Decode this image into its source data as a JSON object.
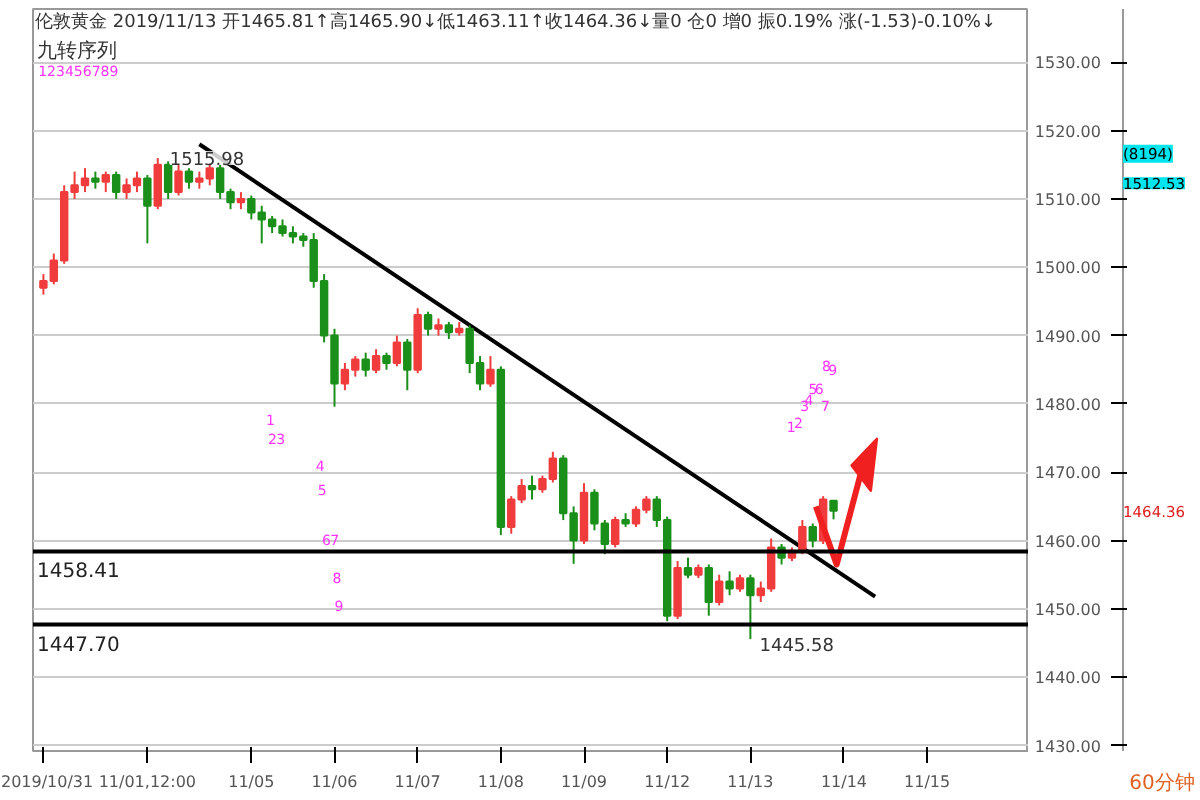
{
  "chart_data": {
    "type": "candlestick",
    "title": "伦敦黄金 2019/11/13 开1465.81↑高1465.90↓低1463.11↑收1464.36↓量0 仓0 增0 振0.19% 涨(-1.53)-0.10%↓",
    "subtitle": "九转序列",
    "categories": [
      "2019/10/31",
      null,
      null,
      null,
      null,
      null,
      null,
      null,
      null,
      null,
      "11/01,12:00",
      null,
      null,
      null,
      null,
      null,
      null,
      null,
      null,
      null,
      "11/05",
      null,
      null,
      null,
      null,
      null,
      null,
      null,
      "11/06",
      null,
      null,
      null,
      null,
      null,
      null,
      null,
      "11/07",
      null,
      null,
      null,
      null,
      null,
      null,
      null,
      "11/08",
      null,
      null,
      null,
      null,
      null,
      null,
      null,
      "11/09",
      null,
      null,
      null,
      null,
      null,
      null,
      null,
      "11/12",
      null,
      null,
      null,
      null,
      null,
      null,
      null,
      "11/13",
      null,
      null,
      null,
      null,
      null,
      null,
      null,
      null,
      "11/14",
      null,
      null,
      null,
      null,
      null,
      null,
      null,
      "11/15",
      null,
      null,
      null,
      null,
      null,
      null,
      null,
      null,
      null
    ],
    "ohlc": [
      [
        1497,
        1499,
        1496,
        1498
      ],
      [
        1498,
        1502,
        1497.5,
        1501
      ],
      [
        1501,
        1512,
        1500.5,
        1511
      ],
      [
        1511,
        1514,
        1510,
        1512
      ],
      [
        1512,
        1514.5,
        1511,
        1513
      ],
      [
        1513,
        1514,
        1511.5,
        1512.5
      ],
      [
        1512.5,
        1514,
        1511,
        1513.5
      ],
      [
        1513.5,
        1514,
        1510,
        1511
      ],
      [
        1511,
        1513,
        1510,
        1512
      ],
      [
        1512,
        1514,
        1511,
        1513
      ],
      [
        1513,
        1513.5,
        1503.5,
        1509
      ],
      [
        1509,
        1515.98,
        1508.5,
        1515
      ],
      [
        1515,
        1515.5,
        1510,
        1511
      ],
      [
        1511,
        1515,
        1510.5,
        1514
      ],
      [
        1514,
        1514.5,
        1511.5,
        1512.5
      ],
      [
        1512.5,
        1514,
        1511.5,
        1513
      ],
      [
        1513,
        1515,
        1512,
        1514.5
      ],
      [
        1514.5,
        1515,
        1510,
        1511
      ],
      [
        1511,
        1511.5,
        1508.5,
        1509.5
      ],
      [
        1509.5,
        1511,
        1508.5,
        1510
      ],
      [
        1510,
        1510.5,
        1507,
        1508
      ],
      [
        1508,
        1509,
        1503.5,
        1507
      ],
      [
        1507,
        1507.5,
        1505,
        1506
      ],
      [
        1506,
        1507,
        1504.5,
        1505
      ],
      [
        1505,
        1506,
        1503.5,
        1504.5
      ],
      [
        1504.5,
        1505,
        1503,
        1504
      ],
      [
        1504,
        1505,
        1497,
        1498
      ],
      [
        1498,
        1499,
        1489,
        1490
      ],
      [
        1490,
        1491,
        1479.6,
        1483
      ],
      [
        1483,
        1486,
        1482,
        1485
      ],
      [
        1485,
        1487,
        1484,
        1486.5
      ],
      [
        1486.5,
        1487.5,
        1484,
        1485
      ],
      [
        1485,
        1488,
        1484.5,
        1487
      ],
      [
        1487,
        1487.5,
        1485,
        1486
      ],
      [
        1486,
        1490,
        1485.5,
        1489
      ],
      [
        1489,
        1489.5,
        1482,
        1485
      ],
      [
        1485,
        1494,
        1484.5,
        1493
      ],
      [
        1493,
        1493.5,
        1490,
        1491
      ],
      [
        1491,
        1492.5,
        1490,
        1491.5
      ],
      [
        1491.5,
        1492,
        1489.5,
        1490.5
      ],
      [
        1490.5,
        1492,
        1490,
        1491
      ],
      [
        1491,
        1491.5,
        1484.5,
        1486
      ],
      [
        1486,
        1487,
        1482,
        1483
      ],
      [
        1483,
        1487,
        1482.5,
        1485
      ],
      [
        1485,
        1485.5,
        1460.8,
        1462
      ],
      [
        1462,
        1466.5,
        1461,
        1466
      ],
      [
        1466,
        1469,
        1465.5,
        1468
      ],
      [
        1468,
        1469.5,
        1466,
        1467.5
      ],
      [
        1467.5,
        1469.5,
        1467,
        1469
      ],
      [
        1469,
        1473,
        1468.5,
        1472
      ],
      [
        1472,
        1472.5,
        1463,
        1464
      ],
      [
        1464,
        1465,
        1456.6,
        1460
      ],
      [
        1460,
        1468.4,
        1459.5,
        1467
      ],
      [
        1467,
        1467.5,
        1461.5,
        1462.5
      ],
      [
        1462.5,
        1463,
        1458,
        1459.5
      ],
      [
        1459.5,
        1463.5,
        1459,
        1463
      ],
      [
        1463,
        1464,
        1462,
        1462.5
      ],
      [
        1462.5,
        1465,
        1462,
        1464.5
      ],
      [
        1464.5,
        1466.5,
        1464,
        1466
      ],
      [
        1466,
        1466.5,
        1462,
        1463
      ],
      [
        1463,
        1463.5,
        1448.2,
        1449
      ],
      [
        1449,
        1457,
        1448.5,
        1456
      ],
      [
        1456,
        1457.5,
        1454.5,
        1455
      ],
      [
        1455,
        1456.5,
        1454.5,
        1456
      ],
      [
        1456,
        1456.5,
        1449,
        1451
      ],
      [
        1451,
        1455,
        1450.5,
        1454
      ],
      [
        1454,
        1455.5,
        1452,
        1453
      ],
      [
        1453,
        1455,
        1452.5,
        1454.5
      ],
      [
        1454.5,
        1455,
        1445.58,
        1452
      ],
      [
        1452,
        1454,
        1451,
        1453
      ],
      [
        1453,
        1460.3,
        1452.5,
        1459
      ],
      [
        1459,
        1459.5,
        1456.5,
        1457.5
      ],
      [
        1457.5,
        1459,
        1457,
        1458.5
      ],
      [
        1458.5,
        1463,
        1458,
        1462
      ],
      [
        1462,
        1462.5,
        1459,
        1460
      ],
      [
        1460,
        1466.5,
        1459.5,
        1466
      ],
      [
        1465.81,
        1465.9,
        1463.11,
        1464.36
      ],
      null,
      null,
      null,
      null,
      null,
      null,
      null,
      null,
      null,
      null,
      null,
      null,
      null,
      null,
      null,
      null,
      null,
      null
    ],
    "colors": [
      "#f03c3c",
      "#f03c3c",
      "#f03c3c",
      "#f03c3c",
      "#f03c3c",
      "#1a8f1a",
      "#f03c3c",
      "#1a8f1a",
      "#f03c3c",
      "#f03c3c",
      "#1a8f1a",
      "#f03c3c",
      "#1a8f1a",
      "#f03c3c",
      "#1a8f1a",
      "#f03c3c",
      "#f03c3c",
      "#1a8f1a",
      "#1a8f1a",
      "#f03c3c",
      "#1a8f1a",
      "#1a8f1a",
      "#1a8f1a",
      "#1a8f1a",
      "#1a8f1a",
      "#1a8f1a",
      "#1a8f1a",
      "#1a8f1a",
      "#1a8f1a",
      "#f03c3c",
      "#f03c3c",
      "#1a8f1a",
      "#f03c3c",
      "#1a8f1a",
      "#f03c3c",
      "#1a8f1a",
      "#f03c3c",
      "#1a8f1a",
      "#f03c3c",
      "#1a8f1a",
      "#f03c3c",
      "#1a8f1a",
      "#1a8f1a",
      "#f03c3c",
      "#1a8f1a",
      "#f03c3c",
      "#f03c3c",
      "#1a8f1a",
      "#f03c3c",
      "#f03c3c",
      "#1a8f1a",
      "#1a8f1a",
      "#f03c3c",
      "#1a8f1a",
      "#1a8f1a",
      "#f03c3c",
      "#1a8f1a",
      "#f03c3c",
      "#f03c3c",
      "#1a8f1a",
      "#1a8f1a",
      "#f03c3c",
      "#1a8f1a",
      "#f03c3c",
      "#1a8f1a",
      "#f03c3c",
      "#1a8f1a",
      "#f03c3c",
      "#1a8f1a",
      "#f03c3c",
      "#f03c3c",
      "#1a8f1a",
      "#f03c3c",
      "#f03c3c",
      "#1a8f1a",
      "#f03c3c",
      "#1a8f1a",
      null,
      null,
      null,
      null,
      null,
      null,
      null,
      null,
      null,
      null,
      null,
      null,
      null,
      null,
      null,
      null,
      null,
      null
    ],
    "series": [
      {
        "type": "line",
        "color": "#000000",
        "values": [
          null,
          null,
          null,
          null,
          null,
          null,
          null,
          null,
          null,
          null,
          null,
          null,
          null,
          null,
          null,
          1518,
          null,
          null,
          null,
          null,
          null,
          null,
          null,
          null,
          null,
          null,
          null,
          null,
          null,
          null,
          null,
          null,
          null,
          null,
          null,
          null,
          null,
          null,
          null,
          null,
          null,
          null,
          null,
          null,
          null,
          null,
          null,
          null,
          null,
          null,
          null,
          null,
          null,
          null,
          null,
          null,
          null,
          null,
          null,
          null,
          null,
          null,
          null,
          null,
          null,
          null,
          null,
          null,
          null,
          null,
          null,
          null,
          null,
          null,
          null,
          null,
          null,
          null,
          null,
          null,
          1451.8,
          null,
          null,
          null,
          null,
          null,
          null,
          null,
          null,
          null,
          null,
          null,
          null,
          null,
          null
        ]
      }
    ],
    "ylim": [
      1429.2,
      1537.8
    ],
    "yticks": [
      {
        "value": 1430,
        "label": "1430.00"
      },
      {
        "value": 1440,
        "label": "1440.00"
      },
      {
        "value": 1450,
        "label": "1450.00"
      },
      {
        "value": 1460,
        "label": "1460.00"
      },
      {
        "value": 1470,
        "label": "1470.00"
      },
      {
        "value": 1480,
        "label": "1480.00"
      },
      {
        "value": 1490,
        "label": "1490.00"
      },
      {
        "value": 1500,
        "label": "1500.00"
      },
      {
        "value": 1510,
        "label": "1510.00"
      },
      {
        "value": 1520,
        "label": "1520.00"
      },
      {
        "value": 1530,
        "label": "1530.00"
      }
    ],
    "ref_lines": [
      {
        "axis": "y",
        "value": 1458.41,
        "label": "1458.41",
        "color": "#000000"
      },
      {
        "axis": "y",
        "value": 1447.7,
        "label": "1447.70",
        "color": "#000000"
      }
    ],
    "grid": "y",
    "annotations": [
      {
        "text": "1515.98",
        "y": 1515.98
      },
      "1445.58",
      "123456789",
      "1",
      "2",
      "3",
      "4",
      "5",
      "6",
      "7",
      "8",
      "9",
      "1",
      "2",
      "3",
      "4",
      "5",
      "6",
      "7",
      "8",
      "9",
      "(8194)",
      "1512.53",
      "1464.36",
      "60分钟"
    ]
  }
}
